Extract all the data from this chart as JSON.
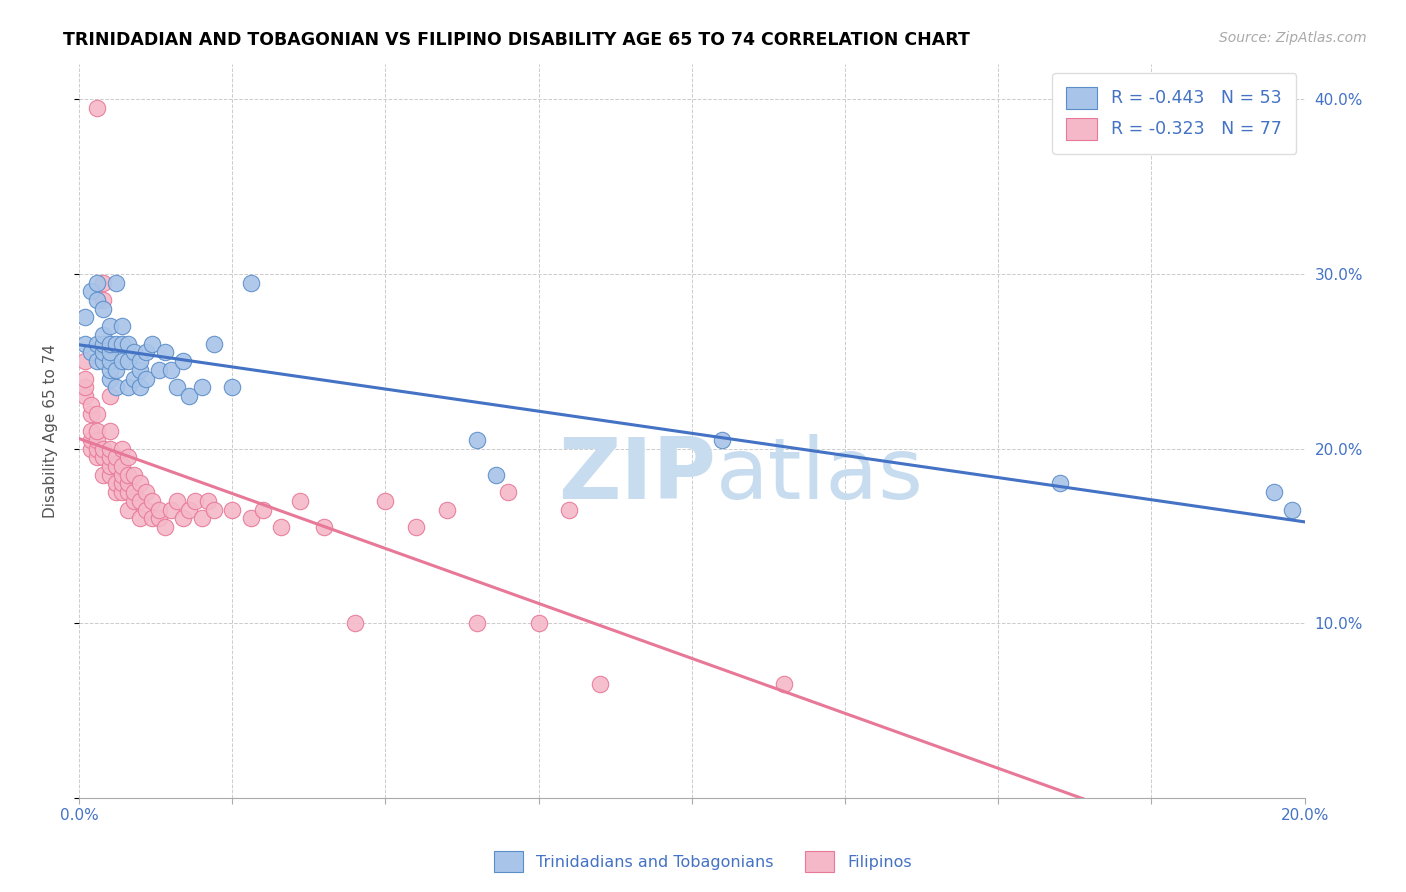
{
  "title": "TRINIDADIAN AND TOBAGONIAN VS FILIPINO DISABILITY AGE 65 TO 74 CORRELATION CHART",
  "source": "Source: ZipAtlas.com",
  "ylabel": "Disability Age 65 to 74",
  "xlim": [
    0.0,
    0.2
  ],
  "ylim": [
    0.0,
    0.42
  ],
  "xticks": [
    0.0,
    0.025,
    0.05,
    0.075,
    0.1,
    0.125,
    0.15,
    0.175,
    0.2
  ],
  "xtick_labels_show": [
    "0.0%",
    "",
    "",
    "",
    "",
    "",
    "",
    "",
    "20.0%"
  ],
  "yticks": [
    0.0,
    0.1,
    0.2,
    0.3,
    0.4
  ],
  "ytick_labels": [
    "",
    "10.0%",
    "20.0%",
    "30.0%",
    "40.0%"
  ],
  "blue_R": -0.443,
  "blue_N": 53,
  "pink_R": -0.323,
  "pink_N": 77,
  "blue_color": "#A8C4E8",
  "pink_color": "#F4B8C8",
  "blue_edge_color": "#5B8DC8",
  "pink_edge_color": "#E87898",
  "blue_line_color": "#4472C4",
  "pink_line_color": "#E87898",
  "watermark_color": "#C8DCF0",
  "legend_label_blue": "Trinidadians and Tobagonians",
  "legend_label_pink": "Filipinos",
  "blue_scatter_x": [
    0.001,
    0.001,
    0.002,
    0.002,
    0.003,
    0.003,
    0.003,
    0.003,
    0.004,
    0.004,
    0.004,
    0.004,
    0.004,
    0.005,
    0.005,
    0.005,
    0.005,
    0.005,
    0.005,
    0.006,
    0.006,
    0.006,
    0.006,
    0.007,
    0.007,
    0.007,
    0.008,
    0.008,
    0.008,
    0.009,
    0.009,
    0.01,
    0.01,
    0.01,
    0.011,
    0.011,
    0.012,
    0.013,
    0.014,
    0.015,
    0.016,
    0.017,
    0.018,
    0.02,
    0.022,
    0.025,
    0.028,
    0.065,
    0.068,
    0.105,
    0.16,
    0.195,
    0.198
  ],
  "blue_scatter_y": [
    0.26,
    0.275,
    0.255,
    0.29,
    0.25,
    0.26,
    0.285,
    0.295,
    0.25,
    0.255,
    0.26,
    0.265,
    0.28,
    0.24,
    0.245,
    0.25,
    0.255,
    0.26,
    0.27,
    0.235,
    0.245,
    0.26,
    0.295,
    0.25,
    0.26,
    0.27,
    0.235,
    0.25,
    0.26,
    0.24,
    0.255,
    0.235,
    0.245,
    0.25,
    0.24,
    0.255,
    0.26,
    0.245,
    0.255,
    0.245,
    0.235,
    0.25,
    0.23,
    0.235,
    0.26,
    0.235,
    0.295,
    0.205,
    0.185,
    0.205,
    0.18,
    0.175,
    0.165
  ],
  "pink_scatter_x": [
    0.001,
    0.001,
    0.001,
    0.001,
    0.002,
    0.002,
    0.002,
    0.002,
    0.002,
    0.003,
    0.003,
    0.003,
    0.003,
    0.003,
    0.003,
    0.004,
    0.004,
    0.004,
    0.004,
    0.004,
    0.005,
    0.005,
    0.005,
    0.005,
    0.005,
    0.005,
    0.006,
    0.006,
    0.006,
    0.006,
    0.007,
    0.007,
    0.007,
    0.007,
    0.007,
    0.008,
    0.008,
    0.008,
    0.008,
    0.008,
    0.009,
    0.009,
    0.009,
    0.01,
    0.01,
    0.01,
    0.011,
    0.011,
    0.012,
    0.012,
    0.013,
    0.013,
    0.014,
    0.015,
    0.016,
    0.017,
    0.018,
    0.019,
    0.02,
    0.021,
    0.022,
    0.025,
    0.028,
    0.03,
    0.033,
    0.036,
    0.04,
    0.045,
    0.05,
    0.055,
    0.06,
    0.065,
    0.07,
    0.075,
    0.08,
    0.085,
    0.115
  ],
  "pink_scatter_y": [
    0.23,
    0.235,
    0.24,
    0.25,
    0.2,
    0.205,
    0.21,
    0.22,
    0.225,
    0.195,
    0.2,
    0.205,
    0.21,
    0.22,
    0.395,
    0.185,
    0.195,
    0.2,
    0.285,
    0.295,
    0.185,
    0.19,
    0.195,
    0.2,
    0.21,
    0.23,
    0.175,
    0.18,
    0.19,
    0.195,
    0.175,
    0.18,
    0.185,
    0.19,
    0.2,
    0.165,
    0.175,
    0.18,
    0.185,
    0.195,
    0.17,
    0.175,
    0.185,
    0.16,
    0.17,
    0.18,
    0.165,
    0.175,
    0.16,
    0.17,
    0.16,
    0.165,
    0.155,
    0.165,
    0.17,
    0.16,
    0.165,
    0.17,
    0.16,
    0.17,
    0.165,
    0.165,
    0.16,
    0.165,
    0.155,
    0.17,
    0.155,
    0.1,
    0.17,
    0.155,
    0.165,
    0.1,
    0.175,
    0.1,
    0.165,
    0.065,
    0.065
  ]
}
